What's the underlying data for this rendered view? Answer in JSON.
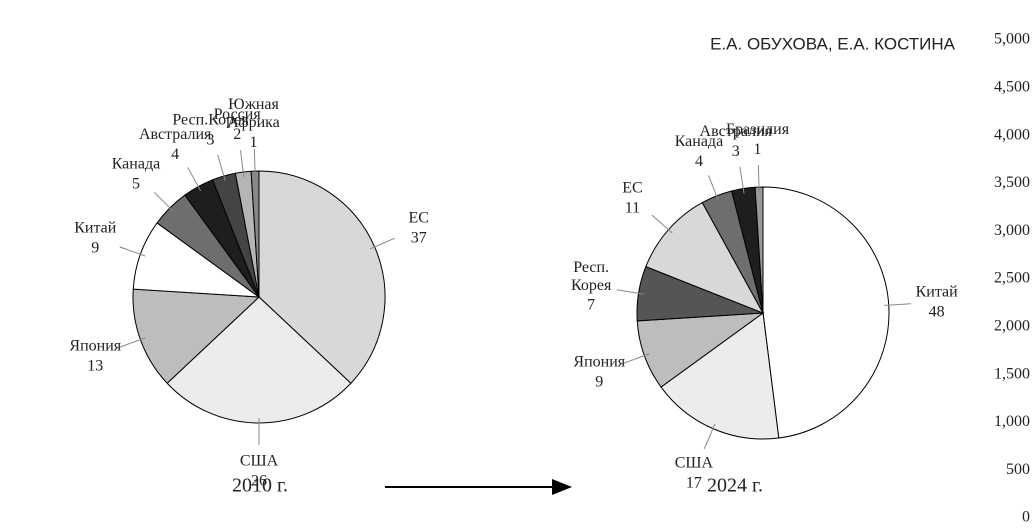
{
  "header": "Е.А. ОБУХОВА, Е.А. КОСТИНА",
  "chart_data": [
    {
      "type": "pie",
      "title": "2010 г.",
      "categories": [
        "ЕС",
        "США",
        "Япония",
        "Китай",
        "Канада",
        "Австралия",
        "Респ.Корея",
        "Россия",
        "Южная Африка"
      ],
      "values": [
        37,
        26,
        13,
        9,
        5,
        4,
        3,
        2,
        1
      ],
      "colors": [
        "#d8d8d8",
        "#ececec",
        "#bdbdbd",
        "#ffffff",
        "#6e6e6e",
        "#1e1e1e",
        "#444444",
        "#b5b5b5",
        "#888888"
      ]
    },
    {
      "type": "pie",
      "title": "2024 г.",
      "categories": [
        "Китай",
        "США",
        "Япония",
        "Респ. Корея",
        "ЕС",
        "Канада",
        "Австралия",
        "Бразилия"
      ],
      "values": [
        48,
        17,
        9,
        7,
        11,
        4,
        3,
        1
      ],
      "colors": [
        "#ffffff",
        "#ececec",
        "#bdbdbd",
        "#555555",
        "#d8d8d8",
        "#6e6e6e",
        "#1e1e1e",
        "#999999"
      ]
    }
  ],
  "axis": {
    "ylim": [
      0,
      5000
    ],
    "yticks": [
      0,
      500,
      {
        "value": 1000,
        "label": "1,000"
      },
      {
        "value": 1500,
        "label": "1,500"
      },
      {
        "value": 2000,
        "label": "2,000"
      },
      {
        "value": 2500,
        "label": "2,500"
      },
      {
        "value": 3000,
        "label": "3,000"
      },
      {
        "value": 3500,
        "label": "3,500"
      },
      {
        "value": 4000,
        "label": "4,000"
      },
      {
        "value": 4500,
        "label": "4,500"
      },
      {
        "value": 5000,
        "label": "5,000"
      }
    ]
  }
}
